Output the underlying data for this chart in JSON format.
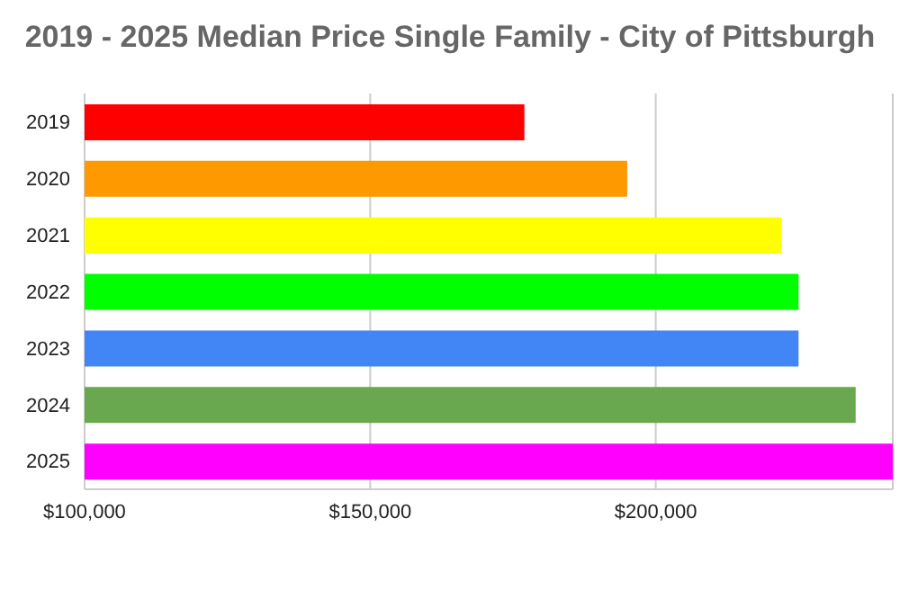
{
  "chart_data": {
    "type": "bar",
    "orientation": "horizontal",
    "title": "2019 - 2025 Median Price Single Family - City of Pittsburgh",
    "categories": [
      "2019",
      "2020",
      "2021",
      "2022",
      "2023",
      "2024",
      "2025"
    ],
    "values": [
      177000,
      195000,
      222000,
      225000,
      225000,
      235000,
      241500
    ],
    "colors": [
      "#ff0000",
      "#ff9900",
      "#ffff00",
      "#00ff00",
      "#4285f4",
      "#6aa84f",
      "#ff00ff"
    ],
    "xlim": [
      100000,
      241500
    ],
    "xticks": [
      {
        "value": 100000,
        "label": "$100,000"
      },
      {
        "value": 150000,
        "label": "$150,000"
      },
      {
        "value": 200000,
        "label": "$200,000"
      }
    ],
    "grid": "x",
    "legend": false
  }
}
